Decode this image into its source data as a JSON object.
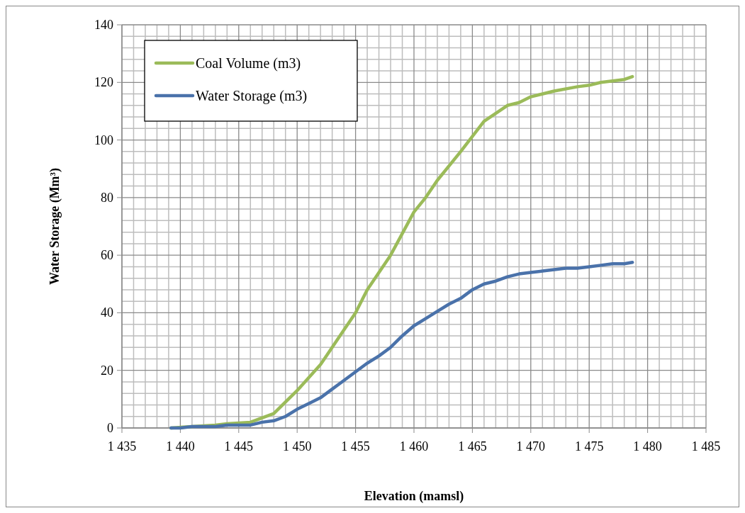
{
  "chart_data": {
    "type": "line",
    "xlabel": "Elevation (mamsl)",
    "ylabel": "Water Storage (Mm³)",
    "xlim": [
      1435,
      1485
    ],
    "xticks": [
      {
        "value": 1435,
        "label": "1 435"
      },
      {
        "value": 1440,
        "label": "1 440"
      },
      {
        "value": 1445,
        "label": "1 445"
      },
      {
        "value": 1450,
        "label": "1 450"
      },
      {
        "value": 1455,
        "label": "1 455"
      },
      {
        "value": 1460,
        "label": "1 460"
      },
      {
        "value": 1465,
        "label": "1 465"
      },
      {
        "value": 1470,
        "label": "1 470"
      },
      {
        "value": 1475,
        "label": "1 475"
      },
      {
        "value": 1480,
        "label": "1 480"
      },
      {
        "value": 1485,
        "label": "1 485"
      }
    ],
    "ylim": [
      0,
      140
    ],
    "yticks": [
      0,
      20,
      40,
      60,
      80,
      100,
      120,
      140
    ],
    "grid": true,
    "legend": "top left",
    "marker": "none",
    "line_style": "solid",
    "series": [
      {
        "name": "Coal Volume (m3)",
        "color": "#9bbb59",
        "x": [
          1439.2,
          1441,
          1443,
          1444,
          1446,
          1448,
          1450,
          1452,
          1454,
          1455,
          1456,
          1458,
          1460,
          1461,
          1462,
          1464,
          1466,
          1468,
          1469,
          1470,
          1472,
          1474,
          1475,
          1476,
          1478,
          1478.7
        ],
        "values": [
          0,
          0.5,
          1,
          1.5,
          2,
          5,
          13,
          22,
          34,
          40,
          48,
          60,
          75,
          80,
          86,
          96,
          106.5,
          112,
          113,
          115,
          117,
          118.5,
          119,
          120,
          121,
          122
        ]
      },
      {
        "name": "Water Storage (m3)",
        "color": "#4a72aa",
        "x": [
          1439.2,
          1440,
          1441,
          1443,
          1444,
          1446,
          1447,
          1448,
          1449,
          1450,
          1451,
          1452,
          1453,
          1454,
          1455,
          1456,
          1457,
          1458,
          1459,
          1460,
          1461,
          1462,
          1463,
          1464,
          1465,
          1466,
          1467,
          1468,
          1469,
          1470,
          1471,
          1472,
          1473,
          1474,
          1475,
          1476,
          1477,
          1478,
          1478.7
        ],
        "values": [
          0,
          0,
          0.5,
          0.5,
          1,
          1,
          2,
          2.5,
          4,
          6.5,
          8.5,
          10.5,
          13.5,
          16.5,
          19.5,
          22.5,
          25,
          28,
          32,
          35.5,
          38,
          40.5,
          43,
          45,
          48,
          50,
          51,
          52.5,
          53.5,
          54,
          54.5,
          55,
          55.5,
          55.5,
          56,
          56.5,
          57,
          57,
          57.5
        ]
      }
    ]
  }
}
